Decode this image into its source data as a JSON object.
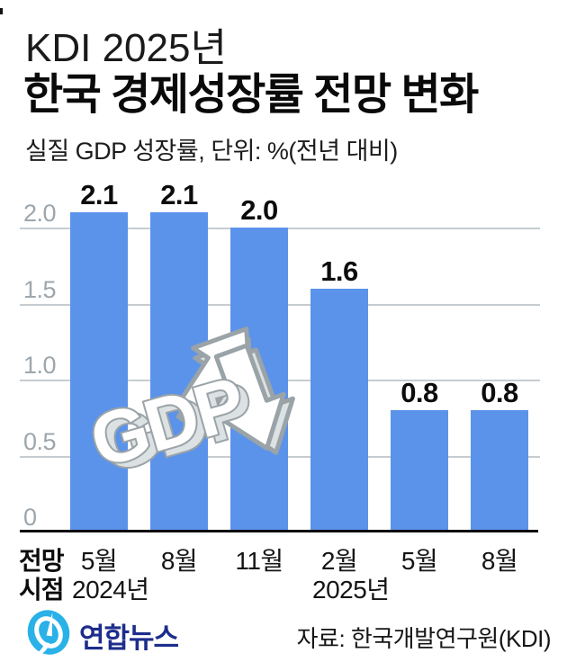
{
  "header": {
    "title_line1": "KDI 2025년",
    "title_line2": "한국 경제성장률 전망 변화",
    "subtitle": "실질 GDP 성장률, 단위: %(전년 대비)"
  },
  "chart_data": {
    "type": "bar",
    "title": "KDI 2025년 한국 경제성장률 전망 변화",
    "subtitle": "실질 GDP 성장률, 단위: %(전년 대비)",
    "categories": [
      "5월",
      "8월",
      "11월",
      "2월",
      "5월",
      "8월"
    ],
    "year_markers": [
      {
        "index": 0,
        "label": "2024년"
      },
      {
        "index": 3,
        "label": "2025년"
      }
    ],
    "values": [
      2.1,
      2.1,
      2.0,
      1.6,
      0.8,
      0.8
    ],
    "value_labels": [
      "2.1",
      "2.1",
      "2.0",
      "1.6",
      "0.8",
      "0.8"
    ],
    "yticks": [
      {
        "label": "2.0",
        "value": 2.0
      },
      {
        "label": "1.5",
        "value": 1.5
      },
      {
        "label": "1.0",
        "value": 1.0
      },
      {
        "label": "0.5",
        "value": 0.5
      },
      {
        "label": "0",
        "value": 0
      }
    ],
    "ylim": [
      0,
      2.35
    ],
    "xaxis_title_lines": [
      "전망",
      "시점"
    ],
    "unit": "%",
    "grid": "horizontal",
    "legend": "none",
    "bar_color": "#5b93ea",
    "grid_color": "#c6ccd0",
    "tick_color": "#9da6ac",
    "illustration": "gdp-3d-letters-with-up-and-down-arrows",
    "illustration_text": "GDP"
  },
  "footer": {
    "logo_text": "연합뉴스",
    "logo_icon": "yonhap-swirl-icon",
    "logo_color": "#29b1e8",
    "logo_text_color": "#1d2d8c",
    "source": "자료: 한국개발연구원(KDI)"
  }
}
